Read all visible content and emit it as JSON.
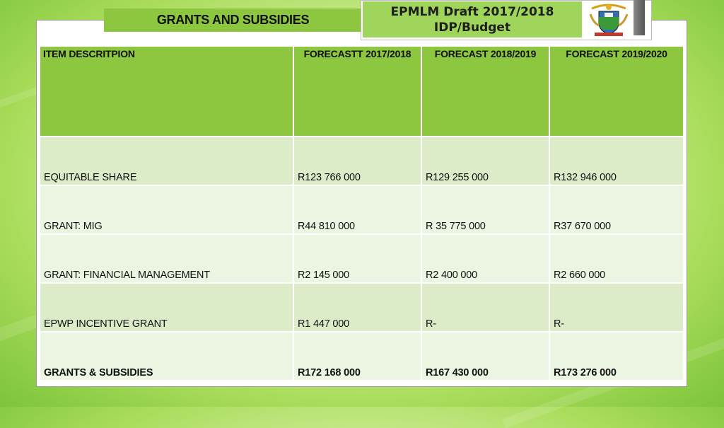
{
  "slide": {
    "section_title": "GRANTS AND SUBSIDIES",
    "doc_title_line1": "EPMLM Draft 2017/2018",
    "doc_title_line2": "IDP/Budget"
  },
  "colors": {
    "header_green": "#8dc63f",
    "title_green": "#9fd55a",
    "row_dark": "#dcebc8",
    "row_light": "#ecf4e2"
  },
  "logo_icon": "municipal-coat-of-arms",
  "table": {
    "headers": [
      "ITEM DESCRITPION",
      "FORECASTT 2017/2018",
      "FORECAST 2018/2019",
      "FORECAST 2019/2020"
    ],
    "rows": [
      [
        "EQUITABLE SHARE",
        "R123 766 000",
        "R129 255 000",
        "R132 946 000"
      ],
      [
        "GRANT: MIG",
        "R44 810 000",
        "R 35 775 000",
        "R37 670 000"
      ],
      [
        "GRANT: FINANCIAL MANAGEMENT",
        "R2 145 000",
        "R2 400 000",
        "R2 660 000"
      ],
      [
        "EPWP INCENTIVE GRANT",
        "R1 447 000",
        "R-",
        "R-"
      ],
      [
        "GRANTS & SUBSIDIES",
        "R172 168 000",
        "R167 430 000",
        "R173 276 000"
      ]
    ]
  }
}
